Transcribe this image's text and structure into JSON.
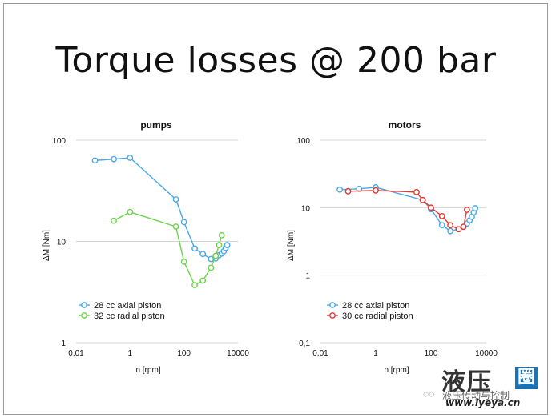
{
  "slide": {
    "title": "Torque losses @ 200 bar"
  },
  "watermark": {
    "logo_main": "液压",
    "logo_box": "圈",
    "subtitle": "液压传动与控制",
    "url": "www.iyeya.cn",
    "chat_icon": "wechat-icon"
  },
  "colors": {
    "blue": "#49a8e8",
    "green": "#6cd34a",
    "red": "#e2382e",
    "grid": "#d4d4d4"
  },
  "chart_data": [
    {
      "type": "line",
      "title": "pumps",
      "xlabel": "n [rpm]",
      "ylabel": "ΔM [Nm]",
      "xscale": "log",
      "yscale": "log",
      "xlim": [
        0.01,
        10000
      ],
      "ylim": [
        1,
        100
      ],
      "xticks": [
        "0,01",
        "1",
        "100",
        "10000"
      ],
      "yticks": [
        "1",
        "10",
        "100"
      ],
      "grid": "horizontal",
      "legend": "bottom-left",
      "series": [
        {
          "name": "28 cc axial piston",
          "color": "#49a8e8",
          "x": [
            0.05,
            0.25,
            1,
            50,
            100,
            250,
            500,
            1000,
            1500,
            2000,
            2500,
            3000,
            3500,
            4000
          ],
          "y": [
            63,
            65,
            67,
            26,
            15.5,
            8.5,
            7.5,
            6.7,
            6.8,
            7.3,
            7.6,
            8.0,
            8.6,
            9.2
          ]
        },
        {
          "name": "32 cc radial piston",
          "color": "#6cd34a",
          "x": [
            0.25,
            1,
            50,
            100,
            250,
            500,
            1000,
            1500,
            2000,
            2500
          ],
          "y": [
            16,
            19.5,
            14,
            6.3,
            3.7,
            4.1,
            5.5,
            7.2,
            9.2,
            11.5
          ]
        }
      ]
    },
    {
      "type": "line",
      "title": "motors",
      "xlabel": "n [rpm]",
      "ylabel": "ΔM [Nm]",
      "xscale": "log",
      "yscale": "log",
      "xlim": [
        0.01,
        10000
      ],
      "ylim": [
        0.1,
        100
      ],
      "xticks": [
        "0,01",
        "1",
        "100",
        "10000"
      ],
      "yticks": [
        "0,1",
        "1",
        "10",
        "100"
      ],
      "grid": "horizontal",
      "legend": "bottom-left",
      "series": [
        {
          "name": "28 cc axial piston",
          "color": "#49a8e8",
          "x": [
            0.05,
            0.25,
            1,
            50,
            100,
            250,
            500,
            1000,
            1500,
            2000,
            2500,
            3000,
            3500,
            4000
          ],
          "y": [
            18.5,
            19,
            20,
            13,
            9.5,
            5.5,
            4.5,
            4.8,
            5.2,
            5.8,
            6.5,
            7.3,
            8.5,
            9.8
          ]
        },
        {
          "name": "30 cc radial piston",
          "color": "#e2382e",
          "x": [
            0.1,
            1,
            30,
            50,
            100,
            250,
            500,
            1000,
            1500,
            2000
          ],
          "y": [
            17.5,
            18,
            17,
            13,
            10,
            7.5,
            5.5,
            4.8,
            5.2,
            9.3
          ]
        }
      ]
    }
  ]
}
